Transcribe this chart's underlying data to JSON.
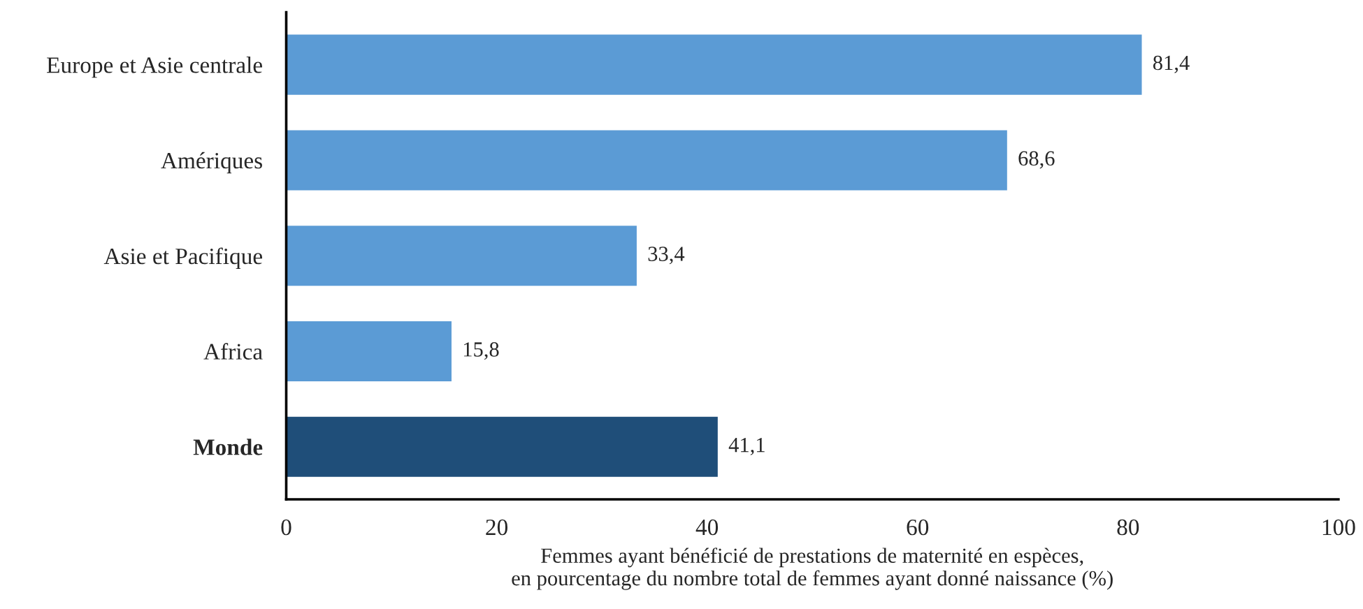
{
  "chart_data": {
    "type": "bar",
    "orientation": "horizontal",
    "categories": [
      "Europe et Asie centrale",
      "Amériques",
      "Asie et Pacifique",
      "Africa",
      "Monde"
    ],
    "values": [
      81.4,
      68.6,
      33.4,
      15.8,
      41.1
    ],
    "value_labels": [
      "81,4",
      "68,6",
      "33,4",
      "15,8",
      "41,1"
    ],
    "colors": [
      "#5b9bd5",
      "#5b9bd5",
      "#5b9bd5",
      "#5b9bd5",
      "#1f4e79"
    ],
    "xlim": [
      0,
      100
    ],
    "xticks": [
      0,
      20,
      40,
      60,
      80,
      100
    ],
    "xlabel": "Femmes ayant bénéficié de prestations de maternité en espèces,\nen pourcentage du nombre total de femmes ayant donné naissance (%)",
    "grid": false,
    "legend": false
  }
}
